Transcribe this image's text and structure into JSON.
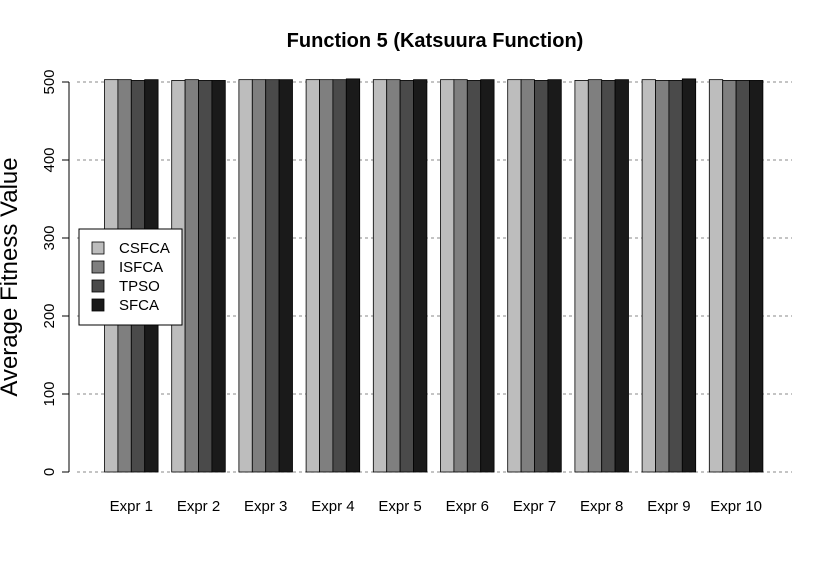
{
  "chart_data": {
    "type": "bar",
    "title": "Function 5 (Katsuura Function)",
    "xlabel": "",
    "ylabel": "Average Fitness Value",
    "ylim": [
      0,
      500
    ],
    "yticks": [
      0,
      100,
      200,
      300,
      400,
      500
    ],
    "grid": true,
    "legend_position": "left",
    "categories": [
      "Expr 1",
      "Expr 2",
      "Expr 3",
      "Expr 4",
      "Expr 5",
      "Expr 6",
      "Expr 7",
      "Expr 8",
      "Expr 9",
      "Expr 10"
    ],
    "series": [
      {
        "name": "CSFCA",
        "color": "#bdbdbd",
        "values": [
          503,
          502,
          503,
          503,
          503,
          503,
          503,
          502,
          503,
          503
        ]
      },
      {
        "name": "ISFCA",
        "color": "#7f7f7f",
        "values": [
          503,
          503,
          503,
          503,
          503,
          503,
          503,
          503,
          502,
          502
        ]
      },
      {
        "name": "TPSO",
        "color": "#4a4a4a",
        "values": [
          502,
          502,
          503,
          503,
          502,
          502,
          502,
          502,
          502,
          502
        ]
      },
      {
        "name": "SFCA",
        "color": "#1a1a1a",
        "values": [
          503,
          502,
          503,
          504,
          503,
          503,
          503,
          503,
          504,
          502
        ]
      }
    ]
  }
}
